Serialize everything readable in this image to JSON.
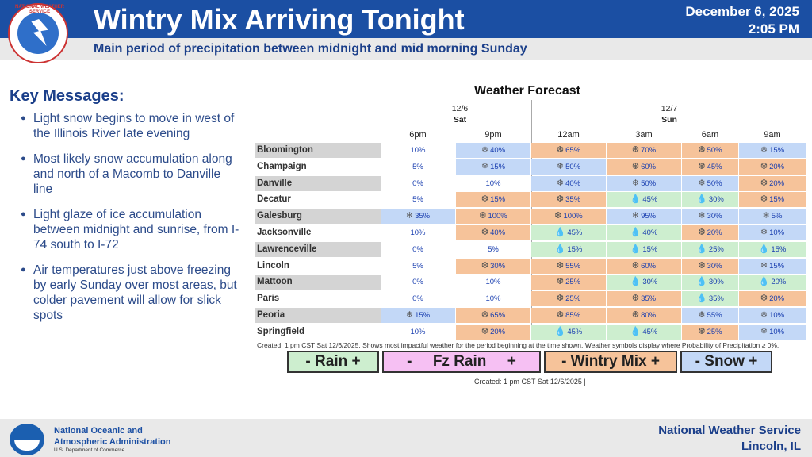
{
  "header": {
    "title": "Wintry Mix Arriving Tonight",
    "date": "December 6, 2025",
    "time": "2:05 PM",
    "subtitle": "Main period of precipitation between midnight and mid morning Sunday",
    "logo_text": "NATIONAL WEATHER SERVICE"
  },
  "key_messages": {
    "title": "Key Messages:",
    "items": [
      "Light snow begins to move in west of the Illinois River late evening",
      "Most likely snow accumulation along and north of a Macomb to Danville line",
      "Light glaze of ice accumulation between midnight and sunrise, from I-74 south to I-72",
      "Air temperatures just above freezing by early Sunday over most areas, but colder pavement will allow for slick spots"
    ]
  },
  "forecast": {
    "title": "Weather Forecast",
    "day1": {
      "date": "12/6",
      "day": "Sat"
    },
    "day2": {
      "date": "12/7",
      "day": "Sun"
    },
    "times": [
      "6pm",
      "9pm",
      "12am",
      "3am",
      "6am",
      "9am"
    ],
    "colors": {
      "snow": "#c3d8f7",
      "wintry": "#f6c39a",
      "rain": "#cdeecf",
      "none": "#ffffff",
      "city_dark": "#d4d4d4",
      "city_light": "#ffffff"
    },
    "rows": [
      {
        "city": "Bloomington",
        "cells": [
          {
            "t": "none",
            "v": "10%"
          },
          {
            "t": "snow",
            "v": "40%"
          },
          {
            "t": "wintry",
            "v": "65%"
          },
          {
            "t": "wintry",
            "v": "70%"
          },
          {
            "t": "wintry",
            "v": "50%"
          },
          {
            "t": "snow",
            "v": "15%"
          }
        ]
      },
      {
        "city": "Champaign",
        "cells": [
          {
            "t": "none",
            "v": "5%"
          },
          {
            "t": "snow",
            "v": "15%"
          },
          {
            "t": "snow",
            "v": "50%"
          },
          {
            "t": "wintry",
            "v": "60%"
          },
          {
            "t": "wintry",
            "v": "45%"
          },
          {
            "t": "wintry",
            "v": "20%"
          }
        ]
      },
      {
        "city": "Danville",
        "cells": [
          {
            "t": "none",
            "v": "0%"
          },
          {
            "t": "none",
            "v": "10%"
          },
          {
            "t": "snow",
            "v": "40%"
          },
          {
            "t": "snow",
            "v": "50%"
          },
          {
            "t": "snow",
            "v": "50%"
          },
          {
            "t": "wintry",
            "v": "20%"
          }
        ]
      },
      {
        "city": "Decatur",
        "cells": [
          {
            "t": "none",
            "v": "5%"
          },
          {
            "t": "wintry",
            "v": "15%"
          },
          {
            "t": "wintry",
            "v": "35%"
          },
          {
            "t": "rain",
            "v": "45%"
          },
          {
            "t": "rain",
            "v": "30%"
          },
          {
            "t": "wintry",
            "v": "15%"
          }
        ]
      },
      {
        "city": "Galesburg",
        "cells": [
          {
            "t": "snow",
            "v": "35%"
          },
          {
            "t": "wintry",
            "v": "100%"
          },
          {
            "t": "wintry",
            "v": "100%"
          },
          {
            "t": "snow",
            "v": "95%"
          },
          {
            "t": "snow",
            "v": "30%"
          },
          {
            "t": "snow",
            "v": "5%"
          }
        ]
      },
      {
        "city": "Jacksonville",
        "cells": [
          {
            "t": "none",
            "v": "10%"
          },
          {
            "t": "wintry",
            "v": "40%"
          },
          {
            "t": "rain",
            "v": "45%"
          },
          {
            "t": "rain",
            "v": "40%"
          },
          {
            "t": "wintry",
            "v": "20%"
          },
          {
            "t": "snow",
            "v": "10%"
          }
        ]
      },
      {
        "city": "Lawrenceville",
        "cells": [
          {
            "t": "none",
            "v": "0%"
          },
          {
            "t": "none",
            "v": "5%"
          },
          {
            "t": "rain",
            "v": "15%"
          },
          {
            "t": "rain",
            "v": "15%"
          },
          {
            "t": "rain",
            "v": "25%"
          },
          {
            "t": "rain",
            "v": "15%"
          }
        ]
      },
      {
        "city": "Lincoln",
        "cells": [
          {
            "t": "none",
            "v": "5%"
          },
          {
            "t": "wintry",
            "v": "30%"
          },
          {
            "t": "wintry",
            "v": "55%"
          },
          {
            "t": "wintry",
            "v": "60%"
          },
          {
            "t": "wintry",
            "v": "30%"
          },
          {
            "t": "snow",
            "v": "15%"
          }
        ]
      },
      {
        "city": "Mattoon",
        "cells": [
          {
            "t": "none",
            "v": "0%"
          },
          {
            "t": "none",
            "v": "10%"
          },
          {
            "t": "wintry",
            "v": "25%"
          },
          {
            "t": "rain",
            "v": "30%"
          },
          {
            "t": "rain",
            "v": "30%"
          },
          {
            "t": "rain",
            "v": "20%"
          }
        ]
      },
      {
        "city": "Paris",
        "cells": [
          {
            "t": "none",
            "v": "0%"
          },
          {
            "t": "none",
            "v": "10%"
          },
          {
            "t": "wintry",
            "v": "25%"
          },
          {
            "t": "wintry",
            "v": "35%"
          },
          {
            "t": "rain",
            "v": "35%"
          },
          {
            "t": "wintry",
            "v": "20%"
          }
        ]
      },
      {
        "city": "Peoria",
        "cells": [
          {
            "t": "snow",
            "v": "15%"
          },
          {
            "t": "wintry",
            "v": "65%"
          },
          {
            "t": "wintry",
            "v": "85%"
          },
          {
            "t": "wintry",
            "v": "80%"
          },
          {
            "t": "snow",
            "v": "55%"
          },
          {
            "t": "snow",
            "v": "10%"
          }
        ]
      },
      {
        "city": "Springfield",
        "cells": [
          {
            "t": "none",
            "v": "10%"
          },
          {
            "t": "wintry",
            "v": "20%"
          },
          {
            "t": "rain",
            "v": "45%"
          },
          {
            "t": "rain",
            "v": "45%"
          },
          {
            "t": "wintry",
            "v": "25%"
          },
          {
            "t": "snow",
            "v": "10%"
          }
        ]
      }
    ],
    "icons": {
      "snow": "❄",
      "wintry": "❆",
      "rain": "💧",
      "none": ""
    },
    "footnote": "Created: 1 pm CST Sat 12/6/2025. Shows most impactful weather for the period beginning at the time shown. Weather symbols display where Probability of Precipitation ≥ 0%."
  },
  "legend": [
    {
      "label": "- Rain +",
      "color": "#cdeecf"
    },
    {
      "label": "-     Fz Rain     +",
      "color": "#f6c0f3"
    },
    {
      "label": "- Wintry Mix +",
      "color": "#f6c39a"
    },
    {
      "label": "- Snow +",
      "color": "#c3d8f7"
    }
  ],
  "created": "Created: 1 pm CST Sat 12/6/2025  |",
  "footer": {
    "noaa_line1": "National Oceanic and",
    "noaa_line2": "Atmospheric Administration",
    "noaa_dept": "U.S. Department of Commerce",
    "nws_line1": "National Weather Service",
    "nws_line2": "Lincoln, IL"
  }
}
